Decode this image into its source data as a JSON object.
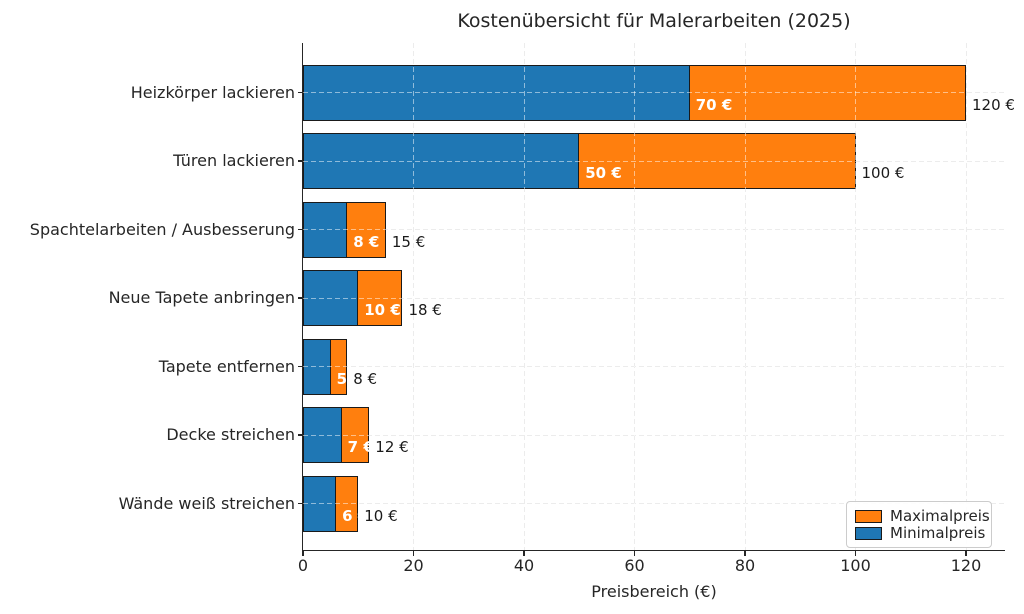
{
  "chart_data": {
    "type": "bar",
    "orientation": "horizontal",
    "title": "Kostenübersicht für Malerarbeiten (2025)",
    "xlabel": "Preisbereich (€)",
    "ylabel": "",
    "categories": [
      "Heizkörper lackieren",
      "Türen lackieren",
      "Spachtelarbeiten / Ausbesserung",
      "Neue Tapete anbringen",
      "Tapete entfernen",
      "Decke streichen",
      "Wände weiß streichen"
    ],
    "series": [
      {
        "name": "Minimalpreis",
        "color": "#1f77b4",
        "values": [
          70,
          50,
          8,
          10,
          5,
          7,
          6
        ]
      },
      {
        "name": "Maximalpreis",
        "color": "#ff7f0e",
        "values": [
          120,
          100,
          15,
          18,
          8,
          12,
          10
        ]
      }
    ],
    "bar_labels_min": [
      "70 €",
      "50 €",
      "8 €",
      "10 €",
      "5 €",
      "7 €",
      "6 €"
    ],
    "bar_labels_max": [
      "120 €",
      "100 €",
      "15 €",
      "18 €",
      "8 €",
      "12 €",
      "10 €"
    ],
    "x_ticks": [
      0,
      20,
      40,
      60,
      80,
      100,
      120
    ],
    "xlim": [
      0,
      127
    ],
    "grid": "dashed",
    "edge_color": "#1a1a1a",
    "legend": {
      "position": "lower right",
      "entries": [
        {
          "label": "Maximalpreis",
          "color": "#ff7f0e"
        },
        {
          "label": "Minimalpreis",
          "color": "#1f77b4"
        }
      ]
    }
  }
}
